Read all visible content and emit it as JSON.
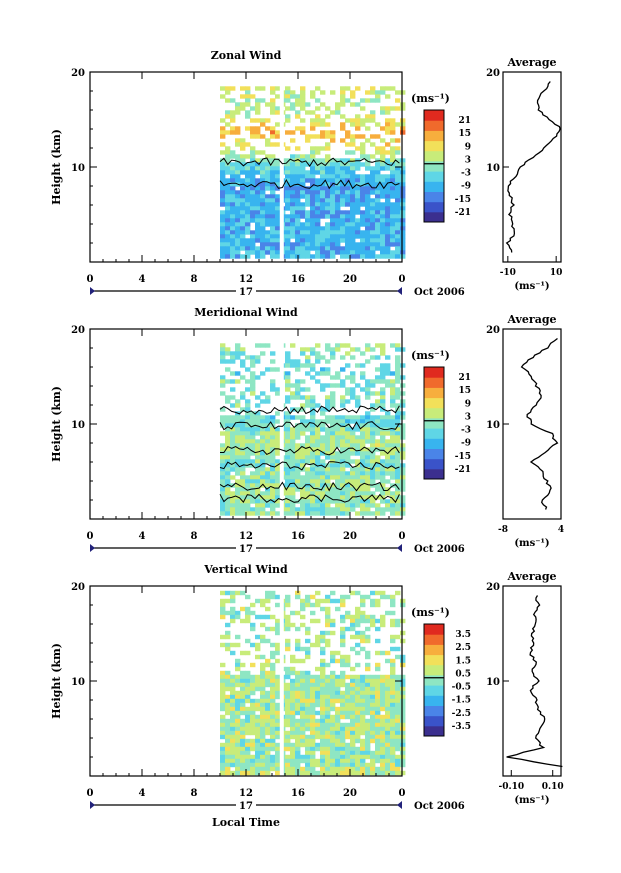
{
  "figure": {
    "x_unit_label": "Oct 2006",
    "date_label": "17",
    "x_axis_title": "Local Time",
    "y_axis_title": "Height (km)",
    "colorbar_title": "(ms⁻¹)",
    "avg_title": "Average",
    "avg_xlabel": "(ms⁻¹)"
  },
  "chart_data": [
    {
      "type": "heatmap",
      "title": "Zonal Wind",
      "xlabel": "",
      "ylabel": "Height (km)",
      "x_ticks": [
        "0",
        "4",
        "8",
        "12",
        "16",
        "20",
        "0"
      ],
      "xlim_hours": [
        0,
        24
      ],
      "y_ticks": [
        "10",
        "20"
      ],
      "ylim_km": [
        0,
        20
      ],
      "data_hours": [
        10,
        24
      ],
      "data_km": [
        0.5,
        18.5
      ],
      "colorbar_ticks": [
        "21",
        "15",
        "9",
        "3",
        "-3",
        "-9",
        "-15",
        "-21"
      ],
      "colorbar_range": [
        -24,
        24
      ],
      "profile": {
        "title": "Average",
        "x_ticks": [
          "-10",
          "10"
        ],
        "xlim": [
          -12,
          12
        ],
        "y_ticks": [
          "10",
          "20"
        ],
        "heights_km": [
          1,
          2,
          3,
          4,
          5,
          6,
          7,
          8,
          9,
          10,
          11,
          12,
          13,
          14,
          15,
          16,
          17,
          18,
          19
        ],
        "values": [
          -8,
          -10,
          -7,
          -8,
          -9,
          -8,
          -9,
          -10,
          -7,
          -5,
          0,
          5,
          9,
          12,
          7,
          3,
          2,
          5,
          8
        ]
      }
    },
    {
      "type": "heatmap",
      "title": "Meridional Wind",
      "xlabel": "",
      "ylabel": "Height (km)",
      "x_ticks": [
        "0",
        "4",
        "8",
        "12",
        "16",
        "20",
        "0"
      ],
      "xlim_hours": [
        0,
        24
      ],
      "y_ticks": [
        "10",
        "20"
      ],
      "ylim_km": [
        0,
        20
      ],
      "data_hours": [
        10,
        24
      ],
      "data_km": [
        0.5,
        18.5
      ],
      "colorbar_ticks": [
        "21",
        "15",
        "9",
        "3",
        "-3",
        "-9",
        "-15",
        "-21"
      ],
      "colorbar_range": [
        -24,
        24
      ],
      "profile": {
        "title": "Average",
        "x_ticks": [
          "-8",
          "4"
        ],
        "xlim": [
          -8,
          4
        ],
        "y_ticks": [
          "10",
          "20"
        ],
        "heights_km": [
          1,
          2,
          3,
          4,
          5,
          6,
          7,
          8,
          9,
          10,
          11,
          12,
          13,
          14,
          15,
          16,
          17,
          18,
          19
        ],
        "values": [
          1,
          0,
          2,
          1,
          0,
          -2,
          1,
          3,
          2,
          -2,
          -3,
          -1,
          0,
          -1,
          -2,
          -4,
          -2,
          1,
          3
        ]
      }
    },
    {
      "type": "heatmap",
      "title": "Vertical Wind",
      "xlabel": "Local Time",
      "ylabel": "Height (km)",
      "x_ticks": [
        "0",
        "4",
        "8",
        "12",
        "16",
        "20",
        "0"
      ],
      "xlim_hours": [
        0,
        24
      ],
      "y_ticks": [
        "10",
        "20"
      ],
      "ylim_km": [
        0,
        20
      ],
      "data_hours": [
        10,
        24
      ],
      "data_km": [
        0.5,
        19.5
      ],
      "colorbar_ticks": [
        "3.5",
        "2.5",
        "1.5",
        "0.5",
        "-0.5",
        "-1.5",
        "-2.5",
        "-3.5"
      ],
      "colorbar_range": [
        -4,
        4
      ],
      "profile": {
        "title": "Average",
        "x_ticks": [
          "-0.10",
          "0.10"
        ],
        "xlim": [
          -0.14,
          0.14
        ],
        "y_ticks": [
          "10",
          "20"
        ],
        "heights_km": [
          1,
          2,
          3,
          4,
          5,
          6,
          7,
          8,
          9,
          10,
          11,
          12,
          13,
          14,
          15,
          16,
          17,
          18,
          19
        ],
        "values": [
          0.14,
          -0.12,
          0.05,
          0.02,
          0.04,
          0.06,
          0.03,
          0.02,
          -0.01,
          0.03,
          0.0,
          0.02,
          -0.01,
          0.01,
          0.0,
          0.02,
          0.01,
          0.03,
          0.02
        ]
      }
    }
  ]
}
